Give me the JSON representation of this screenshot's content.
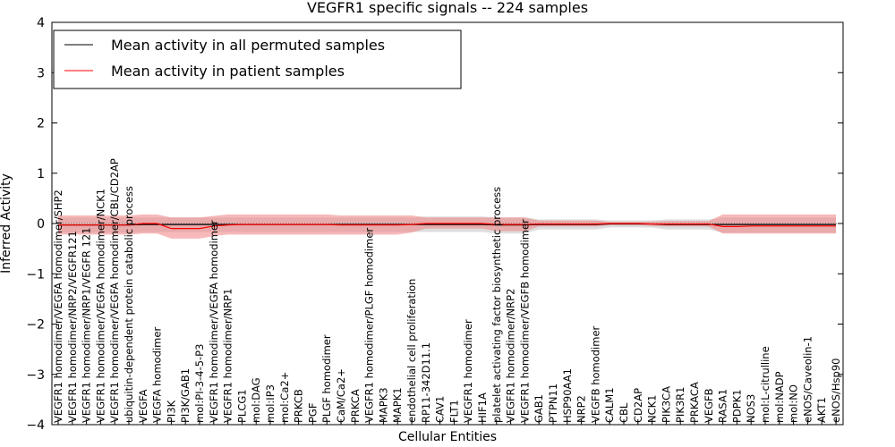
{
  "chart_data": {
    "type": "line",
    "title": "VEGFR1 specific signals -- 224 samples",
    "xlabel": "Cellular Entities",
    "ylabel": "Inferred Activity",
    "ylim": [
      -4,
      4
    ],
    "yticks": [
      "−4",
      "−3",
      "−2",
      "−1",
      "0",
      "1",
      "2",
      "3",
      "4"
    ],
    "grid": false,
    "legend_position": "top-left",
    "categories": [
      "VEGFR1 homodimer/VEGFA homodimer/SHP2",
      "VEGFR1 homodimer/NRP2/VEGFR121",
      "VEGFR1 homodimer/NRP1/VEGFR 121",
      "VEGFR1 homodimer/VEGFA homodimer/NCK1",
      "VEGFR1 homodimer/VEGFA homodimer/CBL/CD2AP",
      "ubiquitin-dependent protein catabolic process",
      "VEGFA",
      "VEGFA homodimer",
      "PI3K",
      "PI3K/GAB1",
      "mol:PI-3-4-5-P3",
      "VEGFR1 homodimer/VEGFA homodimer",
      "VEGFR1 homodimer/NRP1",
      "PLCG1",
      "mol:DAG",
      "mol:IP3",
      "mol:Ca2+",
      "PRKCB",
      "PGF",
      "PLGF homodimer",
      "CaM/Ca2+",
      "PRKCA",
      "VEGFR1 homodimer/PLGF homodimer",
      "MAPK3",
      "MAPK1",
      "endothelial cell proliferation",
      "RP11-342D11.1",
      "CAV1",
      "FLT1",
      "VEGFR1 homodimer",
      "HIF1A",
      "platelet activating factor biosynthetic process",
      "VEGFR1 homodimer/NRP2",
      "VEGFR1 homodimer/VEGFB homodimer",
      "GAB1",
      "PTPN11",
      "HSP90AA1",
      "NRP2",
      "VEGFB homodimer",
      "CALM1",
      "CBL",
      "CD2AP",
      "NCK1",
      "PIK3CA",
      "PIK3R1",
      "PRKACA",
      "VEGFB",
      "RASA1",
      "PDPK1",
      "NOS3",
      "mol:L-citrulline",
      "mol:NADP",
      "mol:NO",
      "eNOS/Caveolin-1",
      "AKT1",
      "eNOS/Hsp90"
    ],
    "series": [
      {
        "name": "Mean activity in all permuted samples",
        "color": "#000000",
        "band_color": "#c8c8c8",
        "values": [
          -0.03,
          -0.03,
          -0.03,
          -0.03,
          -0.03,
          -0.03,
          -0.02,
          -0.02,
          -0.02,
          -0.02,
          -0.02,
          -0.02,
          -0.02,
          -0.02,
          -0.02,
          -0.02,
          -0.02,
          -0.02,
          -0.02,
          -0.02,
          -0.02,
          -0.02,
          -0.02,
          -0.02,
          -0.02,
          -0.02,
          -0.02,
          -0.02,
          -0.02,
          -0.02,
          -0.02,
          -0.03,
          -0.03,
          -0.03,
          -0.02,
          -0.02,
          -0.02,
          -0.02,
          -0.02,
          -0.01,
          -0.01,
          -0.01,
          -0.01,
          -0.02,
          -0.02,
          -0.02,
          -0.02,
          -0.02,
          -0.02,
          -0.02,
          -0.02,
          -0.02,
          -0.02,
          -0.02,
          -0.02,
          -0.02
        ],
        "lower": [
          -0.18,
          -0.18,
          -0.18,
          -0.18,
          -0.18,
          -0.18,
          -0.17,
          -0.17,
          -0.17,
          -0.17,
          -0.17,
          -0.17,
          -0.17,
          -0.17,
          -0.17,
          -0.17,
          -0.17,
          -0.17,
          -0.17,
          -0.17,
          -0.17,
          -0.17,
          -0.17,
          -0.17,
          -0.17,
          -0.17,
          -0.17,
          -0.17,
          -0.17,
          -0.17,
          -0.17,
          -0.2,
          -0.2,
          -0.2,
          -0.12,
          -0.12,
          -0.12,
          -0.12,
          -0.12,
          -0.08,
          -0.08,
          -0.08,
          -0.08,
          -0.12,
          -0.12,
          -0.12,
          -0.12,
          -0.18,
          -0.18,
          -0.18,
          -0.18,
          -0.18,
          -0.18,
          -0.18,
          -0.18,
          -0.18
        ],
        "upper": [
          0.12,
          0.12,
          0.12,
          0.12,
          0.12,
          0.12,
          0.12,
          0.12,
          0.12,
          0.12,
          0.12,
          0.12,
          0.12,
          0.12,
          0.12,
          0.12,
          0.12,
          0.12,
          0.12,
          0.12,
          0.12,
          0.12,
          0.12,
          0.12,
          0.12,
          0.12,
          0.14,
          0.14,
          0.14,
          0.14,
          0.14,
          0.12,
          0.12,
          0.12,
          0.08,
          0.08,
          0.08,
          0.08,
          0.08,
          0.06,
          0.06,
          0.06,
          0.06,
          0.08,
          0.08,
          0.08,
          0.08,
          0.12,
          0.12,
          0.12,
          0.12,
          0.12,
          0.12,
          0.12,
          0.12,
          0.12
        ]
      },
      {
        "name": "Mean activity in patient samples",
        "color": "#ff0000",
        "band_color": "#f08080",
        "values": [
          -0.03,
          -0.03,
          -0.03,
          -0.03,
          -0.03,
          -0.03,
          0.0,
          0.0,
          -0.1,
          -0.1,
          -0.1,
          -0.05,
          -0.03,
          -0.02,
          -0.02,
          -0.02,
          -0.02,
          -0.02,
          -0.02,
          -0.02,
          -0.03,
          -0.03,
          -0.03,
          -0.03,
          -0.03,
          -0.02,
          0.0,
          0.0,
          0.0,
          0.0,
          0.0,
          -0.02,
          -0.02,
          -0.02,
          -0.01,
          -0.01,
          -0.01,
          -0.01,
          -0.01,
          0.0,
          0.0,
          0.0,
          -0.01,
          -0.01,
          -0.01,
          -0.01,
          -0.01,
          -0.06,
          -0.06,
          -0.05,
          -0.05,
          -0.05,
          -0.05,
          -0.05,
          -0.05,
          -0.05
        ],
        "lower": [
          -0.22,
          -0.22,
          -0.22,
          -0.22,
          -0.22,
          -0.22,
          -0.2,
          -0.2,
          -0.3,
          -0.3,
          -0.3,
          -0.25,
          -0.22,
          -0.22,
          -0.22,
          -0.22,
          -0.22,
          -0.22,
          -0.22,
          -0.22,
          -0.22,
          -0.22,
          -0.22,
          -0.22,
          -0.22,
          -0.18,
          -0.1,
          -0.1,
          -0.1,
          -0.1,
          -0.1,
          -0.15,
          -0.15,
          -0.15,
          -0.06,
          -0.06,
          -0.06,
          -0.06,
          -0.06,
          -0.03,
          -0.03,
          -0.03,
          -0.05,
          -0.06,
          -0.06,
          -0.06,
          -0.06,
          -0.2,
          -0.2,
          -0.2,
          -0.2,
          -0.2,
          -0.2,
          -0.2,
          -0.2,
          -0.2
        ],
        "upper": [
          0.16,
          0.16,
          0.16,
          0.16,
          0.16,
          0.16,
          0.18,
          0.18,
          0.12,
          0.12,
          0.12,
          0.15,
          0.18,
          0.18,
          0.18,
          0.18,
          0.18,
          0.18,
          0.18,
          0.18,
          0.16,
          0.16,
          0.16,
          0.16,
          0.16,
          0.16,
          0.12,
          0.12,
          0.12,
          0.12,
          0.12,
          0.12,
          0.12,
          0.12,
          0.06,
          0.06,
          0.06,
          0.06,
          0.06,
          0.03,
          0.03,
          0.03,
          0.04,
          0.05,
          0.05,
          0.05,
          0.05,
          0.18,
          0.18,
          0.18,
          0.18,
          0.18,
          0.18,
          0.18,
          0.18,
          0.18
        ]
      }
    ]
  }
}
